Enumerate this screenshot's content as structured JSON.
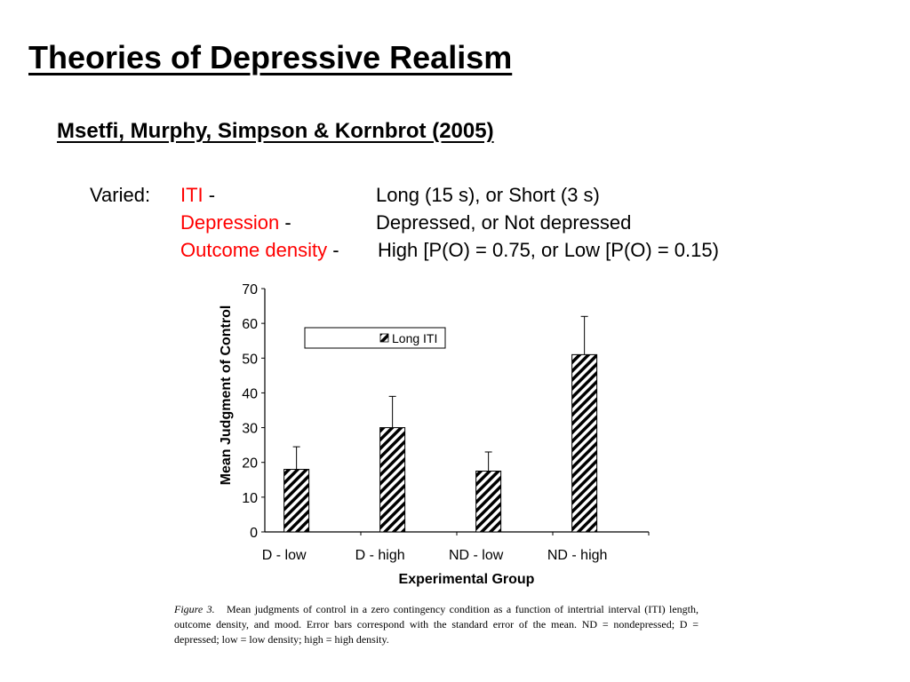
{
  "slide": {
    "title": "Theories of Depressive Realism",
    "subtitle": "Msetfi, Murphy, Simpson & Kornbrot (2005)",
    "varied_label": "Varied:",
    "variables": [
      {
        "name": "ITI",
        "sep": " -",
        "value": "Long (15 s), or Short (3 s)"
      },
      {
        "name": "Depression",
        "sep": " -",
        "value": "Depressed, or Not depressed"
      },
      {
        "name": "Outcome density",
        "sep": " -",
        "value": "High [P(O) = 0.75, or Low [P(O) = 0.15)"
      }
    ],
    "accent_color": "#ff0000"
  },
  "chart_data": {
    "type": "bar",
    "categories": [
      "D - low",
      "D - high",
      "ND - low",
      "ND - high"
    ],
    "series": [
      {
        "name": "Long ITI",
        "values": [
          18,
          30,
          17.5,
          51
        ],
        "errors": [
          6.5,
          9,
          5.5,
          11
        ],
        "pattern": "diagonal-hatch"
      }
    ],
    "xlabel": "Experimental   Group",
    "ylabel": "Mean  Judgment  of  Control",
    "ylim": [
      0,
      70
    ],
    "yticks": [
      0,
      10,
      20,
      30,
      40,
      50,
      60,
      70
    ],
    "grid": false,
    "legend": "top-left"
  },
  "caption": {
    "figure_label": "Figure 3.",
    "text": "Mean judgments of control in a zero contingency condition as a function of intertrial interval (ITI) length, outcome density, and mood. Error bars correspond with the standard error of the mean. ND = nondepressed; D = depressed; low = low density; high = high density."
  }
}
